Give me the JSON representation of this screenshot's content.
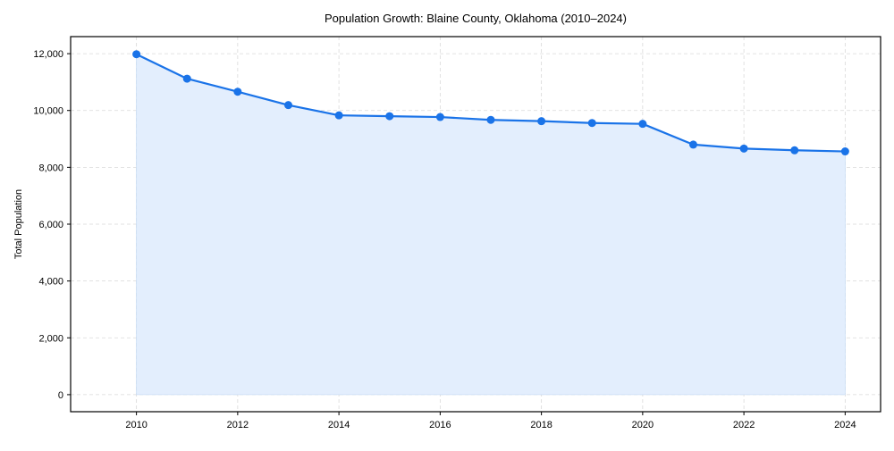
{
  "chart_data": {
    "type": "area",
    "title": "Population Growth: Blaine County, Oklahoma (2010–2024)",
    "xlabel": "",
    "ylabel": "Total Population",
    "x": [
      2010,
      2011,
      2012,
      2013,
      2014,
      2015,
      2016,
      2017,
      2018,
      2019,
      2020,
      2021,
      2022,
      2023,
      2024
    ],
    "series": [
      {
        "name": "Total Population",
        "values": [
          11980,
          11120,
          10660,
          10190,
          9830,
          9800,
          9770,
          9670,
          9625,
          9560,
          9530,
          8800,
          8660,
          8600,
          8560
        ],
        "line_color": "#1a73e8",
        "fill_color": "#e3eefd",
        "marker": "circle"
      }
    ],
    "xlim": [
      2008.7,
      2024.7
    ],
    "ylim": [
      -600,
      12600
    ],
    "xticks": [
      2010,
      2012,
      2014,
      2016,
      2018,
      2020,
      2022,
      2024
    ],
    "xtick_labels": [
      "2010",
      "2012",
      "2014",
      "2016",
      "2018",
      "2020",
      "2022",
      "2024"
    ],
    "yticks": [
      0,
      2000,
      4000,
      6000,
      8000,
      10000,
      12000
    ],
    "ytick_labels": [
      "0",
      "2,000",
      "4,000",
      "6,000",
      "8,000",
      "10,000",
      "12,000"
    ],
    "grid": true,
    "legend": null
  }
}
